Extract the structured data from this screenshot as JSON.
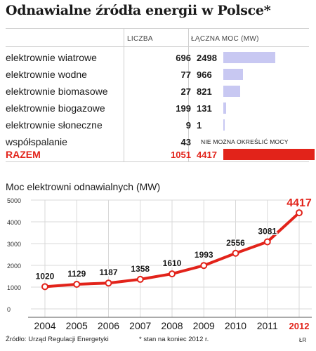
{
  "title": "Odnawialne źródła energii w Polsce*",
  "table": {
    "col_count_header": "LICZBA",
    "col_power_header": "ŁĄCZNA MOC (MW)",
    "rows": [
      {
        "name": "elektrownie wiatrowe",
        "count": "696",
        "power": "2498",
        "power_value": 2498
      },
      {
        "name": "elektrownie wodne",
        "count": "77",
        "power": "966",
        "power_value": 966
      },
      {
        "name": "elektrownie biomasowe",
        "count": "27",
        "power": "821",
        "power_value": 821
      },
      {
        "name": "elektrownie biogazowe",
        "count": "199",
        "power": "131",
        "power_value": 131
      },
      {
        "name": "elektrownie słoneczne",
        "count": "9",
        "power": "1",
        "power_value": 1
      },
      {
        "name": "współspalanie",
        "count": "43",
        "power": "",
        "note": "NIE MOŻNA OKREŚLIĆ MOCY"
      }
    ],
    "total": {
      "name": "RAZEM",
      "count": "1051",
      "power": "4417",
      "power_value": 4417
    }
  },
  "colors": {
    "bar": "#c8c8f2",
    "accent": "#e2231a",
    "line": "#e2231a"
  },
  "chart_data": {
    "type": "line",
    "title": "Moc elektrowni odnawialnych (MW)",
    "x": [
      "2004",
      "2005",
      "2006",
      "2007",
      "2008",
      "2009",
      "2010",
      "2011",
      "2012"
    ],
    "values": [
      1020,
      1129,
      1187,
      1358,
      1610,
      1993,
      2556,
      3081,
      4417
    ],
    "data_labels": [
      "1020",
      "1129",
      "1187",
      "1358",
      "1610",
      "1993",
      "2556",
      "3081",
      "4417"
    ],
    "yticks": [
      "0",
      "1000",
      "2000",
      "3000",
      "4000",
      "5000"
    ],
    "ylim": [
      0,
      5000
    ],
    "grid": true
  },
  "footer": {
    "source": "Źródło: Urząd Regulacji Energetyki",
    "note": "* stan na koniec 2012 r.",
    "author": "ŁR"
  }
}
